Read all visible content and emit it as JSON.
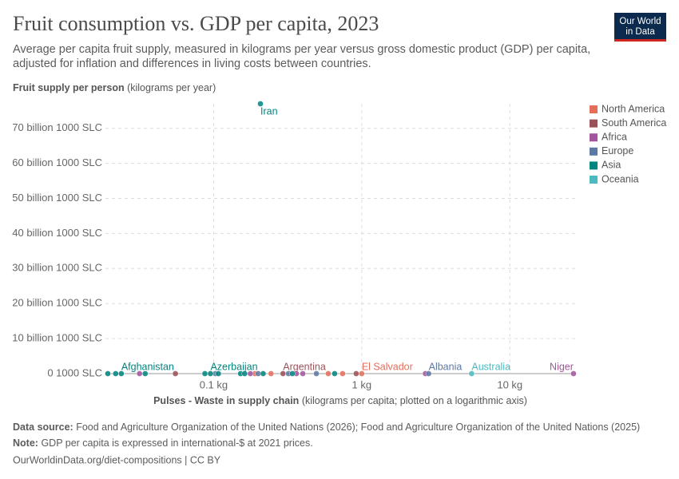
{
  "chart_data": {
    "type": "scatter",
    "title": "Fruit consumption vs. GDP per capita, 2023",
    "subtitle": [
      "Average per capita fruit supply, measured in kilograms per year versus gross domestic product (GDP) per capita,",
      "adjusted for inflation and differences in living costs between countries."
    ],
    "logo": [
      "Our World",
      "in Data"
    ],
    "y_label": "Fruit supply per person",
    "y_label_unit": "(kilograms per year)",
    "x_label": "Pulses - Waste in supply chain",
    "x_label_unit": "(kilograms per capita; plotted on a logarithmic axis)",
    "x_log": true,
    "grid": true,
    "xlim": [
      0.0186,
      27.6
    ],
    "xticks": [
      {
        "value": 0.1,
        "label": "0.1 kg"
      },
      {
        "value": 1,
        "label": "1 kg"
      },
      {
        "value": 10,
        "label": "10 kg"
      }
    ],
    "ylim": [
      0,
      77
    ],
    "yticks": [
      {
        "value": 0,
        "label": "0 1000 SLC"
      },
      {
        "value": 10,
        "label": "10 billion 1000 SLC"
      },
      {
        "value": 20,
        "label": "20 billion 1000 SLC"
      },
      {
        "value": 30,
        "label": "30 billion 1000 SLC"
      },
      {
        "value": 40,
        "label": "40 billion 1000 SLC"
      },
      {
        "value": 50,
        "label": "50 billion 1000 SLC"
      },
      {
        "value": 60,
        "label": "60 billion 1000 SLC"
      },
      {
        "value": 70,
        "label": "70 billion 1000 SLC"
      }
    ],
    "legend": "right",
    "series": [
      {
        "name": "North America",
        "color": "#e56e5a",
        "x": [
          0.19,
          0.244,
          0.594,
          0.743,
          1.0
        ],
        "values": [
          0,
          0,
          0,
          0,
          0
        ],
        "labels": [
          null,
          null,
          null,
          null,
          "El Salvador"
        ]
      },
      {
        "name": "South America",
        "color": "#9a5157",
        "x": [
          0.0552,
          0.294,
          0.917
        ],
        "values": [
          0,
          0,
          0
        ],
        "labels": [
          null,
          "Argentina",
          null
        ]
      },
      {
        "name": "Africa",
        "color": "#a2559c",
        "x": [
          0.0316,
          0.177,
          0.362,
          0.4,
          2.69,
          26.9
        ],
        "values": [
          0,
          0,
          0,
          0,
          0,
          0
        ],
        "labels": [
          null,
          null,
          null,
          null,
          null,
          "Niger"
        ]
      },
      {
        "name": "Europe",
        "color": "#5b79a3",
        "x": [
          0.1026,
          0.2,
          0.32,
          0.494,
          2.83
        ],
        "values": [
          0,
          0,
          0,
          0,
          0
        ],
        "labels": [
          null,
          null,
          null,
          null,
          "Albania"
        ]
      },
      {
        "name": "Asia",
        "color": "#00847e",
        "x": [
          0.0193,
          0.0218,
          0.0238,
          0.0345,
          0.0873,
          0.0952,
          0.1077,
          0.152,
          0.162,
          0.207,
          0.216,
          0.34,
          0.656
        ],
        "values": [
          0,
          0,
          0,
          0,
          0,
          0,
          0,
          0,
          0,
          77,
          0,
          0,
          0
        ],
        "labels": [
          null,
          null,
          "Afghanistan",
          null,
          null,
          "Azerbaijan",
          null,
          null,
          null,
          "Iran",
          null,
          null,
          null
        ]
      },
      {
        "name": "Oceania",
        "color": "#4cbbc1",
        "x": [
          5.52
        ],
        "values": [
          0
        ],
        "labels": [
          "Australia"
        ]
      }
    ],
    "footer": {
      "source_label": "Data source:",
      "source": "Food and Agriculture Organization of the United Nations (2026); Food and Agriculture Organization of the United Nations (2025)",
      "note_label": "Note:",
      "note": "GDP per capita is expressed in international-$ at 2021 prices.",
      "url": "OurWorldinData.org/diet-compositions | CC BY"
    }
  }
}
